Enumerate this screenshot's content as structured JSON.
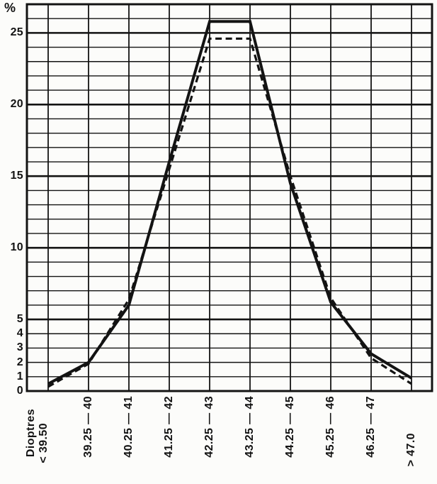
{
  "chart_data": {
    "type": "line",
    "title": "",
    "ylabel": "%",
    "xlabel": "Dioptres",
    "categories": [
      "< 39.50",
      "39.25 — 40",
      "40.25 — 41",
      "41.25 — 42",
      "42.25 — 43",
      "43.25 — 44",
      "44.25 — 45",
      "45.25 — 46",
      "46.25 — 47",
      "> 47.0"
    ],
    "series": [
      {
        "name": "solid-line-series",
        "style": "solid",
        "values": [
          0.5,
          2.0,
          6.0,
          16.0,
          25.8,
          25.8,
          14.5,
          6.2,
          2.6,
          0.9
        ]
      },
      {
        "name": "dashed-line-series",
        "style": "dashed",
        "values": [
          0.3,
          1.9,
          6.4,
          15.5,
          24.6,
          24.6,
          15.0,
          6.5,
          2.3,
          0.5
        ]
      }
    ],
    "ylim": [
      0,
      27
    ],
    "y_tick_labels": [
      0,
      1,
      2,
      3,
      4,
      5,
      10,
      15,
      20,
      25
    ],
    "y_major_gridlines": [
      5,
      10,
      15,
      20,
      25
    ],
    "grid": true,
    "legend_position": "none",
    "line_color": "#131313",
    "background_color": "#fcfcfa"
  }
}
